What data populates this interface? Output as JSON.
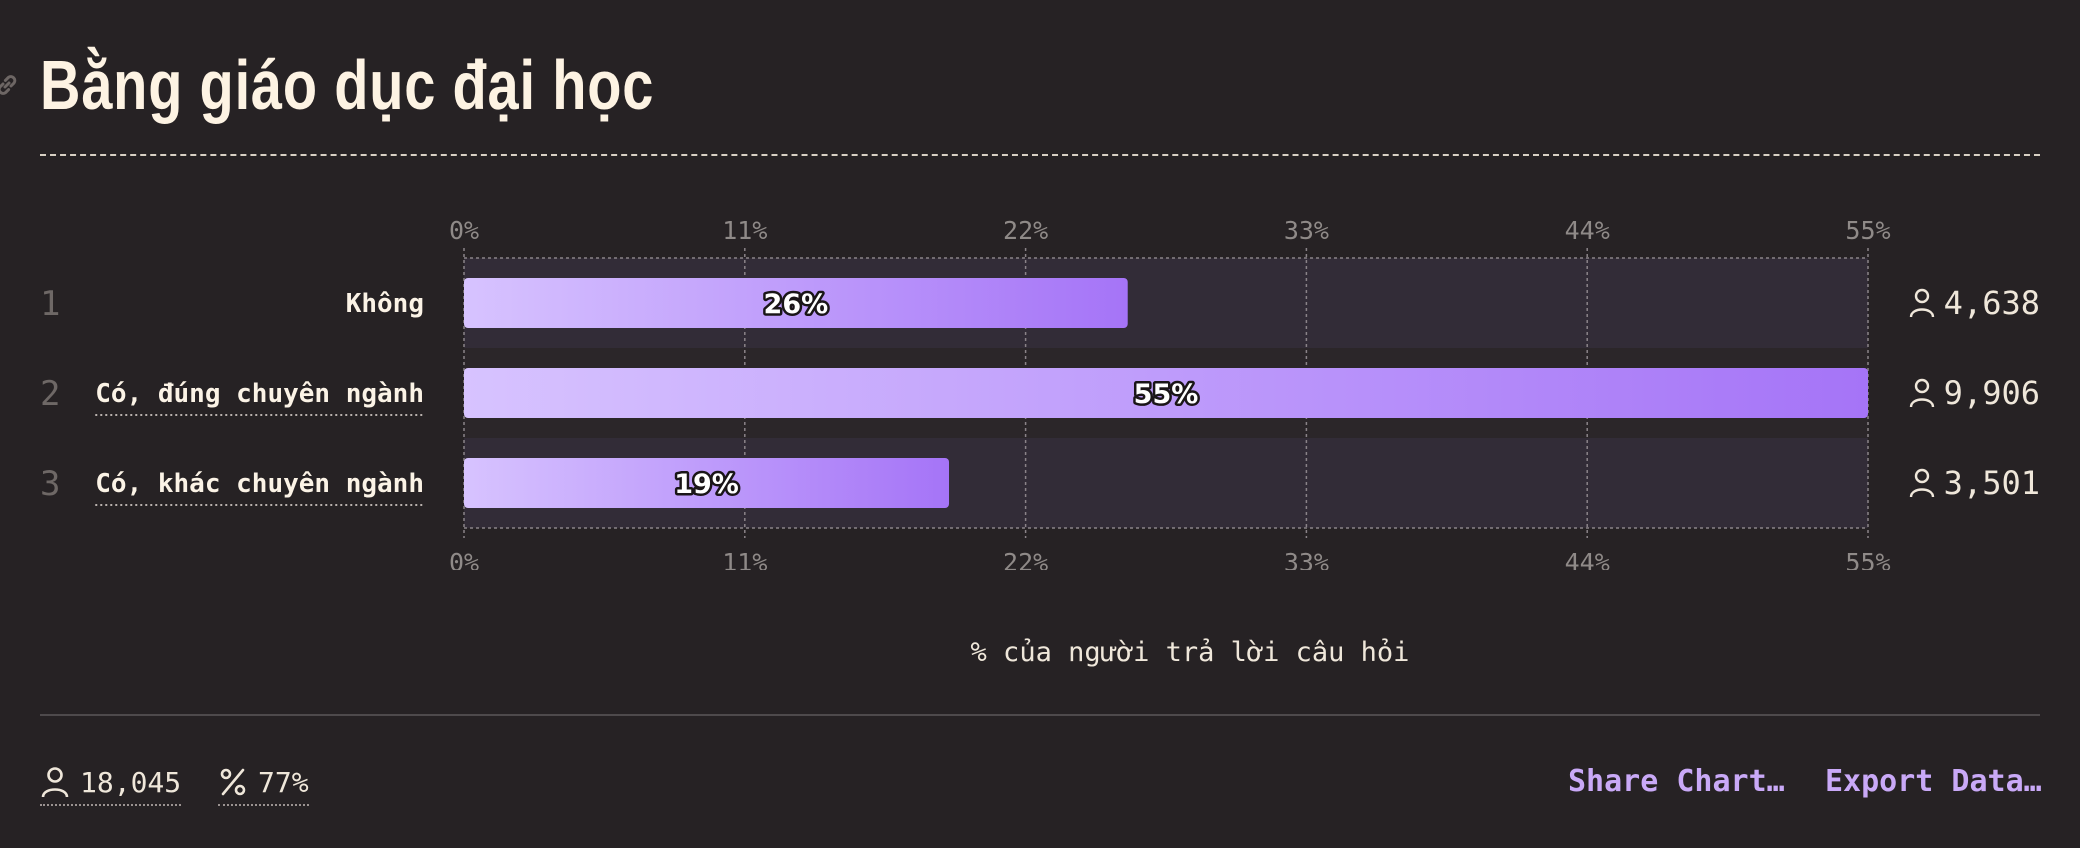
{
  "header": {
    "title": "Bằng giáo dục đại học",
    "link_icon": "link-icon"
  },
  "chart_data": {
    "type": "bar",
    "orientation": "horizontal",
    "title": "Bằng giáo dục đại học",
    "xlabel": "% của người trả lời câu hỏi",
    "ylabel": "",
    "xlim": [
      0,
      55
    ],
    "ticks": [
      "0%",
      "11%",
      "22%",
      "33%",
      "44%",
      "55%"
    ],
    "tick_values": [
      0,
      11,
      22,
      33,
      44,
      55
    ],
    "grid": true,
    "categories": [
      {
        "rank": "1",
        "label": "Không",
        "value": 26,
        "value_label": "26%",
        "count": "4,638"
      },
      {
        "rank": "2",
        "label": "Có, đúng chuyên ngành",
        "value": 55,
        "value_label": "55%",
        "count": "9,906"
      },
      {
        "rank": "3",
        "label": "Có, khác chuyên ngành",
        "value": 19,
        "value_label": "19%",
        "count": "3,501"
      }
    ],
    "colors": {
      "bar_start": "#d7c3ff",
      "bar_end": "#a574f7",
      "band": "#322c37"
    }
  },
  "footer": {
    "respondents": "18,045",
    "percent": "77%",
    "share_label": "Share Chart…",
    "export_label": "Export Data…"
  }
}
